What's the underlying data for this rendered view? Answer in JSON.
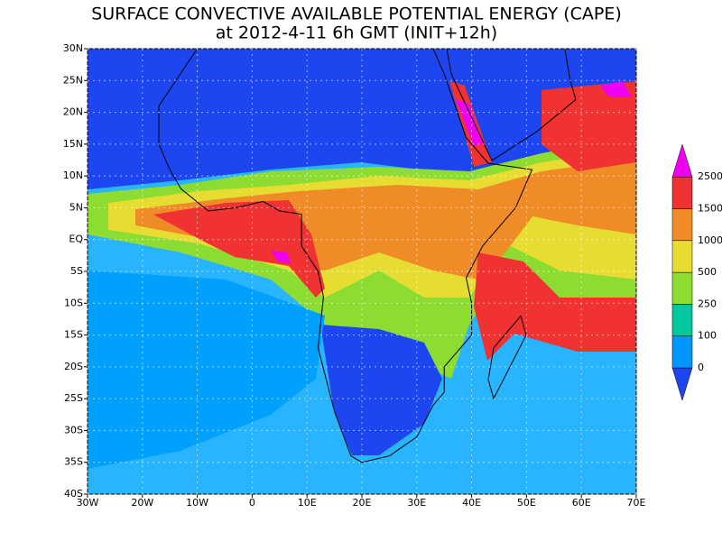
{
  "map": {
    "title": "SURFACE CONVECTIVE AVAILABLE POTENTIAL ENERGY (CAPE)",
    "subtitle": "at 2012-4-11 6h GMT (INIT+12h)",
    "xlim": [
      -30,
      70
    ],
    "ylim": [
      -40,
      30
    ],
    "xticks": [
      {
        "value": -30,
        "label": "30W"
      },
      {
        "value": -20,
        "label": "20W"
      },
      {
        "value": -10,
        "label": "10W"
      },
      0,
      {
        "value": 10,
        "label": "10E"
      },
      {
        "value": 20,
        "label": "20E"
      },
      {
        "value": 30,
        "label": "30E"
      },
      {
        "value": 40,
        "label": "40E"
      },
      {
        "value": 50,
        "label": "50E"
      },
      {
        "value": 60,
        "label": "60E"
      },
      {
        "value": 70,
        "label": "70E"
      }
    ],
    "yticks": [
      {
        "value": -40,
        "label": "40S"
      },
      {
        "value": -35,
        "label": "35S"
      },
      {
        "value": -30,
        "label": "30S"
      },
      {
        "value": -25,
        "label": "25S"
      },
      {
        "value": -20,
        "label": "20S"
      },
      {
        "value": -15,
        "label": "15S"
      },
      {
        "value": -10,
        "label": "10S"
      },
      {
        "value": -5,
        "label": "5S"
      },
      {
        "value": 0,
        "label": "EQ"
      },
      {
        "value": 5,
        "label": "5N"
      },
      {
        "value": 10,
        "label": "10N"
      },
      {
        "value": 15,
        "label": "15N"
      },
      {
        "value": 20,
        "label": "20N"
      },
      {
        "value": 25,
        "label": "25N"
      },
      {
        "value": 30,
        "label": "30N"
      }
    ],
    "colorbar": {
      "levels": [
        0,
        100,
        250,
        500,
        1000,
        1500,
        2500
      ],
      "colors": [
        "#1e46f0",
        "#0096ff",
        "#00c8a0",
        "#8cdc32",
        "#e6dc32",
        "#f08c28",
        "#f03232",
        "#f000f0"
      ]
    }
  }
}
